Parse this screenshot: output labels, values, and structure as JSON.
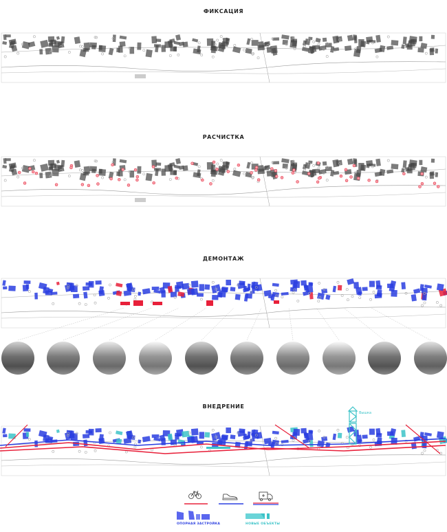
{
  "sections": [
    {
      "title": "ФИКСАЦИЯ"
    },
    {
      "title": "РАСЧИСТКА"
    },
    {
      "title": "ДЕМОНТАЖ"
    },
    {
      "title": "ВНЕДРЕНИЕ"
    }
  ],
  "tower_label": "Вышка",
  "photos_count": 10,
  "legend": {
    "routes": [
      {
        "icon": "bicycle-icon",
        "line_colors": [
          "#e8203a"
        ]
      },
      {
        "icon": "sneaker-icon",
        "line_colors": [
          "#2a3ee0"
        ]
      },
      {
        "icon": "ambulance-icon",
        "line_colors": [
          "#e8203a",
          "#2a3ee0"
        ]
      }
    ],
    "existing_label": "ОПОРНАЯ ЗАСТРОЙКА",
    "new_label": "НОВЫЕ ОБЪЕКТЫ"
  },
  "colors": {
    "existing": "#2a3ee0",
    "new": "#3cc3c8",
    "demolish": "#e8203a",
    "base": "#555555"
  }
}
